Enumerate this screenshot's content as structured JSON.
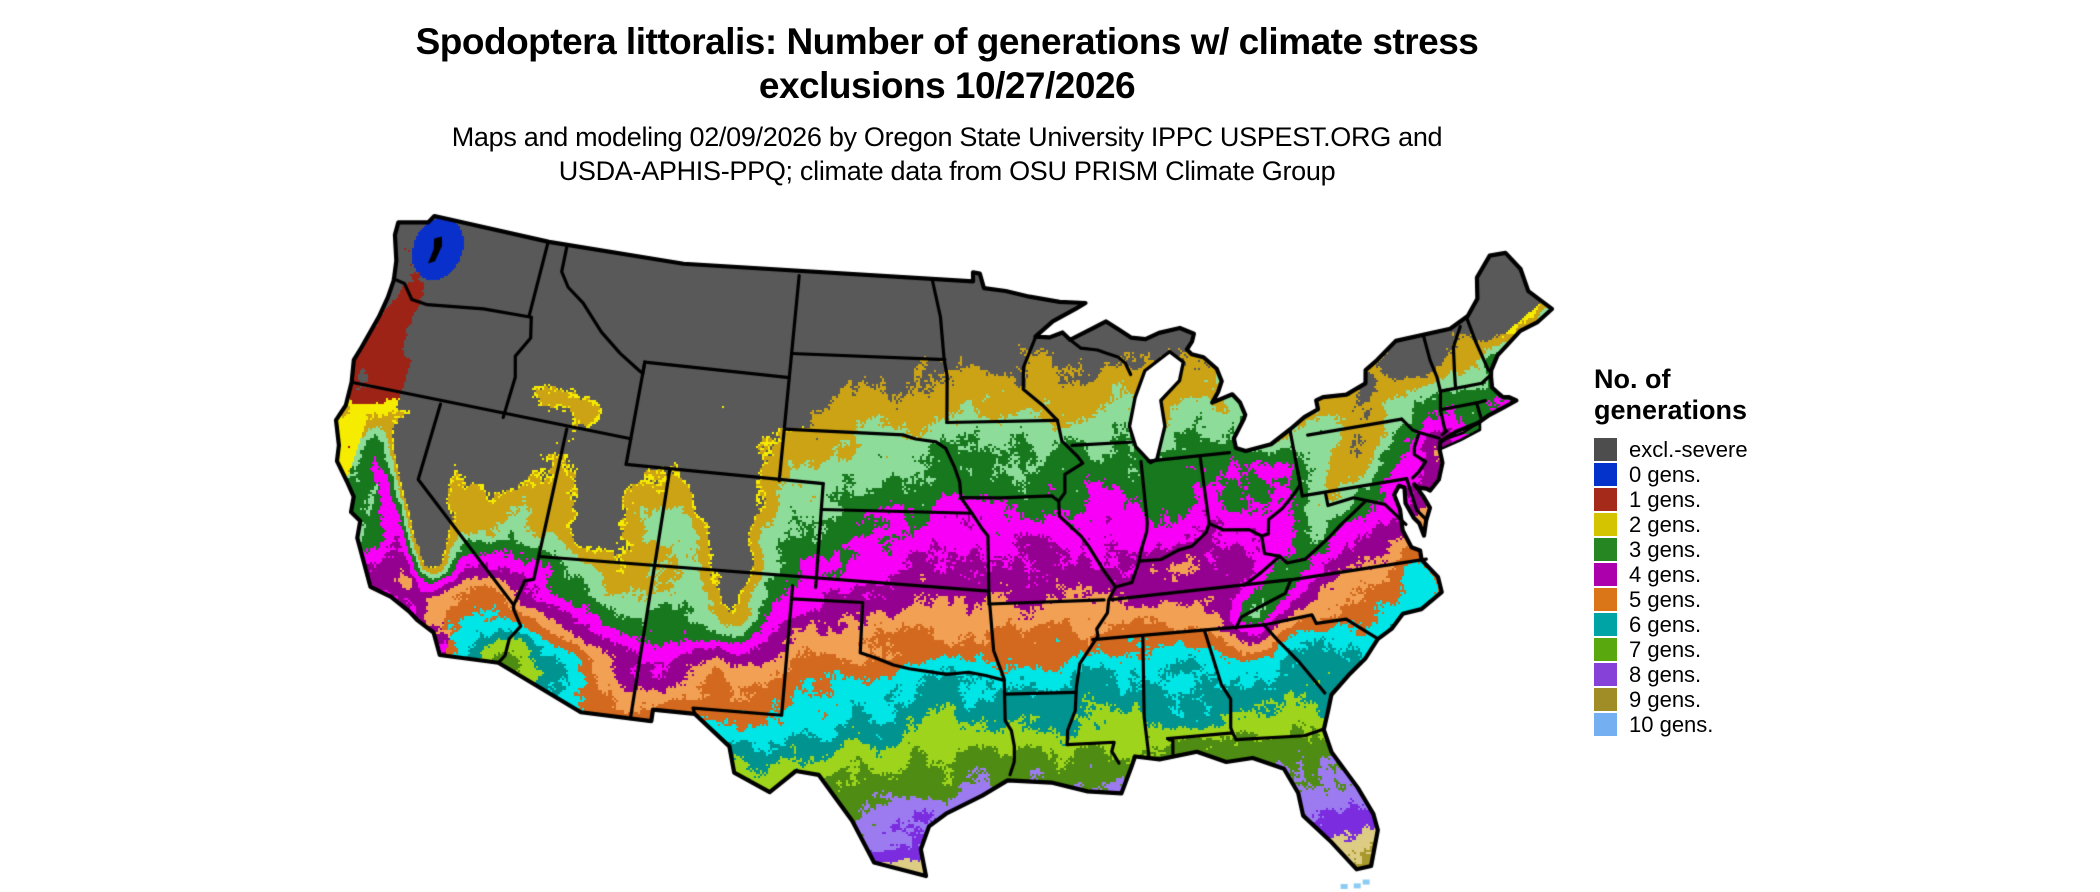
{
  "title": {
    "line1": "Spodoptera littoralis: Number of generations w/ climate stress",
    "line2": "exclusions 10/27/2026"
  },
  "subtitle": {
    "line1": "Maps and modeling 02/09/2026 by Oregon State University IPPC USPEST.ORG and",
    "line2": "USDA-APHIS-PPQ; climate data from OSU PRISM Climate Group"
  },
  "legend": {
    "title_line1": "No. of",
    "title_line2": "generations",
    "items": [
      {
        "label": "excl.-severe",
        "color": "#4D4D4D"
      },
      {
        "label": "0 gens.",
        "color": "#0433CC"
      },
      {
        "label": "1 gens.",
        "color": "#A52A1A"
      },
      {
        "label": "2 gens.",
        "color": "#D4C400"
      },
      {
        "label": "3 gens.",
        "color": "#268621"
      },
      {
        "label": "4 gens.",
        "color": "#AC00AC"
      },
      {
        "label": "5 gens.",
        "color": "#DB7618"
      },
      {
        "label": "6 gens.",
        "color": "#00A4A4"
      },
      {
        "label": "7 gens.",
        "color": "#58A80E"
      },
      {
        "label": "8 gens.",
        "color": "#8642D8"
      },
      {
        "label": "9 gens.",
        "color": "#A18D26"
      },
      {
        "label": "10 gens.",
        "color": "#74AFF2"
      }
    ]
  },
  "map": {
    "palette": {
      "excluded": "#595959",
      "water": "#FFFFFF",
      "boundary": "#000000",
      "gen0": "#0A30CC",
      "gen1": "#9E2317",
      "gen2_early": "#F6EC00",
      "gen2_late": "#CBA315",
      "gen3_early": "#8EDC9A",
      "gen3_late": "#17781E",
      "gen4_early": "#F800F8",
      "gen4_late": "#94008F",
      "gen5_early": "#F2A054",
      "gen5_late": "#D2691E",
      "gen6_early": "#00E6E6",
      "gen6_late": "#00938F",
      "gen7_early": "#9ED51C",
      "gen7_late": "#4F8C13",
      "gen8_early": "#9C7BF0",
      "gen8_late": "#7A2CDE",
      "gen9_early": "#DCCC84",
      "gen9_late": "#A8992C",
      "gen10": "#8CCCF4"
    }
  }
}
